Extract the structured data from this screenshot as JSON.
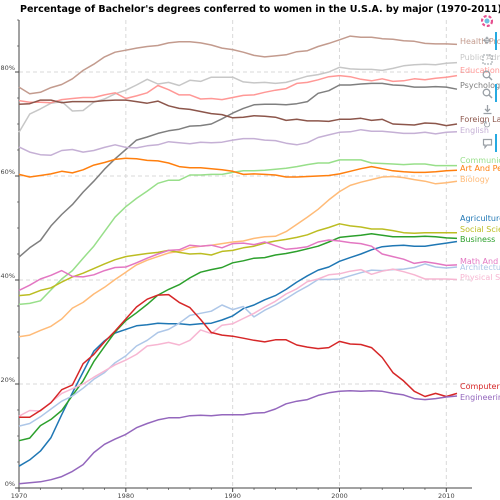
{
  "chart_data": {
    "type": "line",
    "title": "Percentage of Bachelor's degrees conferred to women in the U.S.A. by major (1970-2011)",
    "xlabel": "",
    "ylabel": "",
    "xlim": [
      1970,
      2011
    ],
    "ylim": [
      0,
      90
    ],
    "x_ticks": [
      "1970",
      "1980",
      "1990",
      "2000",
      "2010"
    ],
    "y_ticks": [
      "0%",
      "20%",
      "40%",
      "60%",
      "80%"
    ],
    "grid": true,
    "years": [
      1970,
      1971,
      1972,
      1973,
      1974,
      1975,
      1976,
      1977,
      1978,
      1979,
      1980,
      1981,
      1982,
      1983,
      1984,
      1985,
      1986,
      1987,
      1988,
      1989,
      1990,
      1991,
      1992,
      1993,
      1994,
      1995,
      1996,
      1997,
      1998,
      1999,
      2000,
      2001,
      2002,
      2003,
      2004,
      2005,
      2006,
      2007,
      2008,
      2009,
      2010,
      2011
    ],
    "series": [
      {
        "name": "Health Professions",
        "color": "#c39b8e",
        "values": [
          77.1,
          75.8,
          76.1,
          77.0,
          77.6,
          78.7,
          80.3,
          81.5,
          82.9,
          83.8,
          84.2,
          84.6,
          84.9,
          85.1,
          85.6,
          85.8,
          85.8,
          85.6,
          85.2,
          84.6,
          84.3,
          83.8,
          83.2,
          82.9,
          83.1,
          83.3,
          83.9,
          84.1,
          84.9,
          85.5,
          86.2,
          86.9,
          86.7,
          86.7,
          86.4,
          86.3,
          86.0,
          85.9,
          85.5,
          85.4,
          85.4,
          85.3
        ]
      },
      {
        "name": "Public Administration",
        "color": "#c7c7c7",
        "values": [
          68.4,
          71.9,
          72.9,
          74.0,
          74.3,
          72.5,
          72.6,
          74.2,
          74.8,
          75.8,
          76.5,
          77.5,
          78.6,
          77.7,
          78.0,
          77.4,
          78.4,
          78.2,
          79.0,
          79.0,
          79.0,
          78.1,
          77.9,
          78.0,
          77.8,
          78.0,
          78.6,
          79.2,
          79.5,
          80.0,
          80.9,
          80.6,
          80.5,
          80.5,
          80.3,
          80.7,
          81.2,
          81.4,
          81.5,
          81.4,
          81.7,
          81.8
        ]
      },
      {
        "name": "Education",
        "color": "#ff9896",
        "values": [
          74.5,
          74.2,
          74.2,
          74.1,
          74.7,
          74.9,
          75.1,
          75.1,
          75.6,
          76.0,
          74.9,
          75.4,
          76.0,
          77.4,
          76.6,
          75.6,
          75.6,
          74.8,
          74.9,
          74.7,
          75.1,
          75.5,
          75.6,
          76.1,
          76.5,
          76.8,
          77.8,
          78.0,
          78.5,
          79.1,
          79.3,
          79.1,
          78.6,
          78.3,
          78.7,
          78.2,
          78.3,
          78.7,
          78.5,
          78.8,
          79.0,
          79.3
        ]
      },
      {
        "name": "Psychology",
        "color": "#7f7f7f",
        "values": [
          44.4,
          46.2,
          47.6,
          50.4,
          52.6,
          54.5,
          56.9,
          59.0,
          61.3,
          63.3,
          65.1,
          66.9,
          67.5,
          68.2,
          68.7,
          69.0,
          69.6,
          69.7,
          70.0,
          71.0,
          72.1,
          73.0,
          73.7,
          73.8,
          73.8,
          73.7,
          73.9,
          74.3,
          75.9,
          76.4,
          77.5,
          77.5,
          77.7,
          77.8,
          77.8,
          77.5,
          77.4,
          77.1,
          77.1,
          77.2,
          77.1,
          76.7
        ]
      },
      {
        "name": "Foreign Languages",
        "color": "#8c564b",
        "values": [
          73.8,
          73.9,
          74.6,
          74.6,
          74.1,
          74.3,
          74.3,
          74.3,
          74.5,
          74.6,
          74.6,
          74.3,
          74.0,
          74.4,
          73.5,
          73.0,
          72.8,
          72.4,
          72.0,
          71.8,
          71.2,
          71.3,
          71.6,
          71.5,
          71.3,
          70.7,
          70.9,
          70.6,
          70.6,
          70.5,
          70.9,
          70.9,
          71.1,
          70.7,
          70.9,
          70.0,
          69.9,
          69.8,
          70.2,
          70.1,
          69.7,
          70.0
        ]
      },
      {
        "name": "English",
        "color": "#c5b0d5",
        "values": [
          65.6,
          64.6,
          64.1,
          64.0,
          64.9,
          65.1,
          64.6,
          64.9,
          65.5,
          66.0,
          65.5,
          65.4,
          65.8,
          66.0,
          66.6,
          66.4,
          66.2,
          66.5,
          66.4,
          66.5,
          66.9,
          67.2,
          67.2,
          66.9,
          66.8,
          66.3,
          66.0,
          66.4,
          67.4,
          67.9,
          68.4,
          68.5,
          68.9,
          68.6,
          68.6,
          68.4,
          68.2,
          68.2,
          68.4,
          68.1,
          68.4,
          68.5
        ]
      },
      {
        "name": "Communications And Journalism",
        "color": "#98df8a",
        "values": [
          35.3,
          35.5,
          36.0,
          38.1,
          40.2,
          41.8,
          44.2,
          46.5,
          49.3,
          52.1,
          54.1,
          55.7,
          57.1,
          58.6,
          59.2,
          59.2,
          60.2,
          60.2,
          60.3,
          60.3,
          60.7,
          61.0,
          61.0,
          61.1,
          61.3,
          61.5,
          61.8,
          62.2,
          62.5,
          62.5,
          63.1,
          63.1,
          63.1,
          62.5,
          62.4,
          62.3,
          62.2,
          62.3,
          62.3,
          62.0,
          62.0,
          62.0
        ]
      },
      {
        "name": "Art And Performance",
        "color": "#ff7f0e",
        "values": [
          60.3,
          59.8,
          60.1,
          60.4,
          60.9,
          60.6,
          61.2,
          62.1,
          62.6,
          63.2,
          63.4,
          63.3,
          63.0,
          62.9,
          62.5,
          61.8,
          61.6,
          61.6,
          61.4,
          61.2,
          60.9,
          60.3,
          60.4,
          60.3,
          60.2,
          59.8,
          59.8,
          59.9,
          60.0,
          60.1,
          60.4,
          60.9,
          61.4,
          61.8,
          61.4,
          61.0,
          60.8,
          60.7,
          60.7,
          60.8,
          61.0,
          61.1
        ]
      },
      {
        "name": "Biology",
        "color": "#ffbb78",
        "values": [
          29.1,
          29.4,
          30.3,
          31.1,
          32.5,
          34.6,
          35.7,
          37.3,
          38.6,
          40.1,
          41.5,
          42.9,
          43.8,
          44.5,
          45.2,
          45.5,
          46.2,
          46.5,
          46.7,
          47.0,
          47.3,
          47.5,
          48.0,
          48.3,
          48.4,
          49.3,
          50.7,
          52.1,
          53.6,
          55.4,
          57.0,
          58.2,
          58.8,
          59.3,
          59.8,
          59.9,
          59.7,
          59.3,
          59.0,
          58.5,
          58.7,
          59.0
        ]
      },
      {
        "name": "Agriculture",
        "color": "#1f77b4",
        "values": [
          4.2,
          5.4,
          7.1,
          9.7,
          14.1,
          18.3,
          22.3,
          26.3,
          28.3,
          29.8,
          30.5,
          31.2,
          31.4,
          31.7,
          31.6,
          31.6,
          31.4,
          31.6,
          31.7,
          32.3,
          33.1,
          34.5,
          35.2,
          36.2,
          37.0,
          38.2,
          39.6,
          40.8,
          41.9,
          42.5,
          43.6,
          44.3,
          45.0,
          45.8,
          46.4,
          46.6,
          46.7,
          46.5,
          46.5,
          46.8,
          47.1,
          47.4
        ]
      },
      {
        "name": "Social Sciences And History",
        "color": "#bcbd22",
        "values": [
          37.0,
          37.2,
          38.0,
          38.5,
          39.6,
          40.6,
          41.3,
          42.2,
          43.1,
          43.9,
          44.5,
          44.8,
          45.1,
          45.3,
          45.7,
          45.3,
          45.0,
          45.1,
          44.8,
          45.5,
          45.7,
          46.2,
          46.5,
          47.1,
          47.5,
          47.8,
          48.2,
          48.7,
          49.5,
          50.1,
          50.8,
          50.4,
          50.2,
          49.8,
          49.8,
          49.5,
          49.1,
          49.0,
          49.1,
          49.1,
          49.1,
          49.1
        ]
      },
      {
        "name": "Business",
        "color": "#2ca02c",
        "values": [
          9.1,
          9.6,
          12.0,
          13.2,
          14.9,
          17.8,
          20.6,
          24.3,
          27.2,
          30.0,
          32.2,
          33.7,
          35.3,
          37.1,
          38.2,
          39.1,
          40.4,
          41.5,
          42.0,
          42.4,
          43.3,
          43.7,
          44.2,
          44.3,
          44.8,
          45.1,
          45.5,
          46.0,
          46.5,
          47.3,
          48.2,
          48.4,
          48.6,
          48.9,
          48.6,
          48.3,
          48.3,
          48.3,
          48.4,
          48.3,
          48.1,
          48.0
        ]
      },
      {
        "name": "Math And Statistics",
        "color": "#e377c2",
        "values": [
          38.0,
          39.0,
          40.2,
          40.9,
          41.8,
          40.7,
          40.6,
          41.0,
          41.8,
          42.4,
          42.5,
          43.3,
          44.2,
          45.0,
          45.7,
          45.8,
          46.7,
          46.5,
          46.7,
          46.2,
          47.0,
          47.1,
          46.8,
          47.3,
          46.6,
          45.9,
          46.1,
          46.4,
          47.3,
          47.7,
          47.5,
          47.2,
          47.0,
          46.5,
          45.0,
          44.5,
          44.0,
          43.2,
          43.5,
          43.2,
          42.8,
          42.9
        ]
      },
      {
        "name": "Architecture",
        "color": "#aec7e8",
        "values": [
          11.9,
          12.4,
          13.7,
          15.2,
          16.7,
          17.7,
          19.2,
          20.9,
          22.2,
          24.1,
          25.4,
          27.3,
          28.4,
          29.9,
          30.5,
          31.7,
          33.2,
          33.6,
          34.0,
          35.2,
          34.3,
          34.9,
          32.9,
          34.2,
          35.2,
          36.4,
          37.7,
          38.8,
          40.1,
          40.1,
          40.2,
          40.8,
          41.4,
          41.9,
          41.8,
          42.0,
          42.1,
          42.4,
          43.1,
          42.5,
          42.3,
          42.5
        ]
      },
      {
        "name": "Physical Sciences",
        "color": "#f7b6d2",
        "values": [
          13.8,
          14.9,
          14.8,
          16.5,
          18.2,
          19.1,
          20.0,
          21.3,
          22.5,
          23.7,
          24.6,
          25.7,
          27.3,
          27.6,
          28.0,
          27.5,
          28.4,
          30.4,
          29.7,
          31.3,
          31.6,
          32.6,
          33.6,
          34.8,
          35.9,
          37.3,
          38.3,
          39.7,
          40.2,
          41.0,
          41.2,
          41.7,
          42.0,
          41.1,
          41.7,
          42.1,
          41.6,
          41.0,
          40.2,
          40.2,
          40.2,
          40.1
        ]
      },
      {
        "name": "Computer Science",
        "color": "#d62728",
        "values": [
          13.6,
          13.6,
          14.9,
          16.4,
          18.9,
          19.8,
          23.9,
          25.7,
          28.1,
          30.2,
          32.5,
          34.8,
          36.3,
          37.1,
          37.2,
          35.7,
          34.7,
          32.4,
          29.9,
          29.4,
          29.2,
          28.8,
          28.4,
          28.1,
          28.5,
          28.5,
          27.5,
          27.1,
          26.8,
          27.0,
          28.2,
          27.7,
          27.6,
          27.0,
          25.1,
          22.2,
          20.6,
          18.6,
          17.6,
          18.2,
          17.6,
          18.2
        ]
      },
      {
        "name": "Engineering",
        "color": "#9467bd",
        "values": [
          0.8,
          1.0,
          1.2,
          1.6,
          2.2,
          3.2,
          4.5,
          6.8,
          8.4,
          9.4,
          10.3,
          11.6,
          12.4,
          13.1,
          13.5,
          13.5,
          13.9,
          14.0,
          13.9,
          14.1,
          14.1,
          14.1,
          14.4,
          14.5,
          15.2,
          16.2,
          16.7,
          17.0,
          17.8,
          18.3,
          18.6,
          18.7,
          18.6,
          18.7,
          18.6,
          18.2,
          17.9,
          17.2,
          17.0,
          17.2,
          17.5,
          17.7
        ]
      }
    ]
  },
  "toolbar": {
    "icons": [
      "bokeh-logo-icon",
      "pan-icon",
      "box-zoom-icon",
      "wheel-zoom-icon",
      "zoom-in-icon",
      "save-icon",
      "reset-icon",
      "hover-icon"
    ]
  }
}
